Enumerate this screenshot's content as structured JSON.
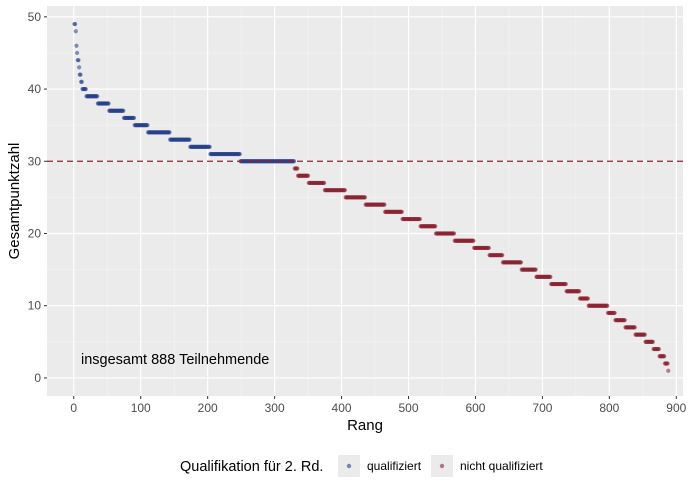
{
  "chart_data": {
    "type": "scatter",
    "xlabel": "Rang",
    "ylabel": "Gesamtpunktzahl",
    "xlim": [
      -40,
      910
    ],
    "ylim": [
      -2.5,
      51.5
    ],
    "x_ticks": [
      0,
      100,
      200,
      300,
      400,
      500,
      600,
      700,
      800,
      900
    ],
    "y_ticks": [
      0,
      10,
      20,
      30,
      40,
      50
    ],
    "grid": true,
    "threshold": {
      "y": 30,
      "style": "dashed",
      "color": "#8b2332"
    },
    "annotation": "insgesamt 888 Teilnehmende",
    "total_participants": 888,
    "legend": {
      "title": "Qualifikation für 2. Rd.",
      "placement": "bottom",
      "entries": [
        {
          "label": "qualifiziert",
          "color": "#27408b"
        },
        {
          "label": "nicht qualifiziert",
          "color": "#8b2332"
        }
      ]
    },
    "series": [
      {
        "name": "qualifiziert",
        "color": "#27408b",
        "score_ranges": [
          {
            "score": 49,
            "from": 1,
            "to": 2
          },
          {
            "score": 48,
            "from": 3,
            "to": 3
          },
          {
            "score": 46,
            "from": 4,
            "to": 4
          },
          {
            "score": 45,
            "from": 5,
            "to": 5
          },
          {
            "score": 44,
            "from": 6,
            "to": 7
          },
          {
            "score": 43,
            "from": 8,
            "to": 8
          },
          {
            "score": 42,
            "from": 9,
            "to": 10
          },
          {
            "score": 41,
            "from": 11,
            "to": 12
          },
          {
            "score": 40,
            "from": 13,
            "to": 18
          },
          {
            "score": 39,
            "from": 19,
            "to": 35
          },
          {
            "score": 38,
            "from": 36,
            "to": 52
          },
          {
            "score": 37,
            "from": 53,
            "to": 74
          },
          {
            "score": 36,
            "from": 75,
            "to": 90
          },
          {
            "score": 35,
            "from": 91,
            "to": 110
          },
          {
            "score": 34,
            "from": 111,
            "to": 143
          },
          {
            "score": 33,
            "from": 144,
            "to": 173
          },
          {
            "score": 32,
            "from": 174,
            "to": 203
          },
          {
            "score": 31,
            "from": 204,
            "to": 248
          },
          {
            "score": 30,
            "from": 249,
            "to": 329
          }
        ]
      },
      {
        "name": "nicht qualifiziert",
        "color": "#8b2332",
        "score_ranges": [
          {
            "score": 29,
            "from": 330,
            "to": 334
          },
          {
            "score": 28,
            "from": 335,
            "to": 350
          },
          {
            "score": 27,
            "from": 351,
            "to": 374
          },
          {
            "score": 26,
            "from": 375,
            "to": 405
          },
          {
            "score": 25,
            "from": 406,
            "to": 435
          },
          {
            "score": 24,
            "from": 436,
            "to": 464
          },
          {
            "score": 23,
            "from": 465,
            "to": 490
          },
          {
            "score": 22,
            "from": 491,
            "to": 517
          },
          {
            "score": 21,
            "from": 518,
            "to": 540
          },
          {
            "score": 20,
            "from": 541,
            "to": 568
          },
          {
            "score": 19,
            "from": 569,
            "to": 597
          },
          {
            "score": 18,
            "from": 598,
            "to": 620
          },
          {
            "score": 17,
            "from": 621,
            "to": 640
          },
          {
            "score": 16,
            "from": 641,
            "to": 668
          },
          {
            "score": 15,
            "from": 669,
            "to": 690
          },
          {
            "score": 14,
            "from": 691,
            "to": 712
          },
          {
            "score": 13,
            "from": 713,
            "to": 735
          },
          {
            "score": 12,
            "from": 736,
            "to": 755
          },
          {
            "score": 11,
            "from": 756,
            "to": 768
          },
          {
            "score": 10,
            "from": 769,
            "to": 797
          },
          {
            "score": 9,
            "from": 798,
            "to": 808
          },
          {
            "score": 8,
            "from": 809,
            "to": 823
          },
          {
            "score": 7,
            "from": 824,
            "to": 838
          },
          {
            "score": 6,
            "from": 839,
            "to": 853
          },
          {
            "score": 5,
            "from": 854,
            "to": 865
          },
          {
            "score": 4,
            "from": 866,
            "to": 874
          },
          {
            "score": 3,
            "from": 875,
            "to": 882
          },
          {
            "score": 2,
            "from": 883,
            "to": 887
          },
          {
            "score": 1,
            "from": 888,
            "to": 888
          }
        ]
      }
    ]
  }
}
